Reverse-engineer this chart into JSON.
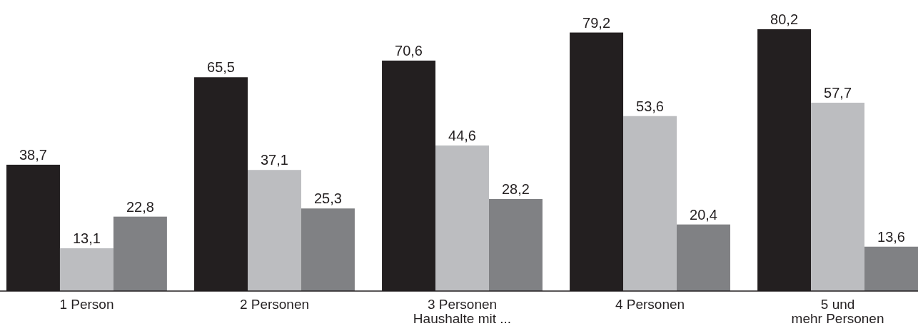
{
  "chart_data": {
    "type": "bar",
    "xlabel": "Haushalte mit ...",
    "categories": [
      "1 Person",
      "2 Personen",
      "3 Personen",
      "4 Personen",
      "5 und\nmehr Personen"
    ],
    "series": [
      {
        "color": "#231f20",
        "values": [
          38.7,
          65.5,
          70.6,
          79.2,
          80.2
        ],
        "value_labels": [
          "38,7",
          "65,5",
          "70,6",
          "79,2",
          "80,2"
        ]
      },
      {
        "color": "#bcbdc0",
        "values": [
          13.1,
          37.1,
          44.6,
          53.6,
          57.7
        ],
        "value_labels": [
          "13,1",
          "37,1",
          "44,6",
          "53,6",
          "57,7"
        ]
      },
      {
        "color": "#808184",
        "values": [
          22.8,
          25.3,
          28.2,
          20.4,
          13.6
        ],
        "value_labels": [
          "22,8",
          "25,3",
          "28,2",
          "20,4",
          "13,6"
        ]
      }
    ]
  }
}
